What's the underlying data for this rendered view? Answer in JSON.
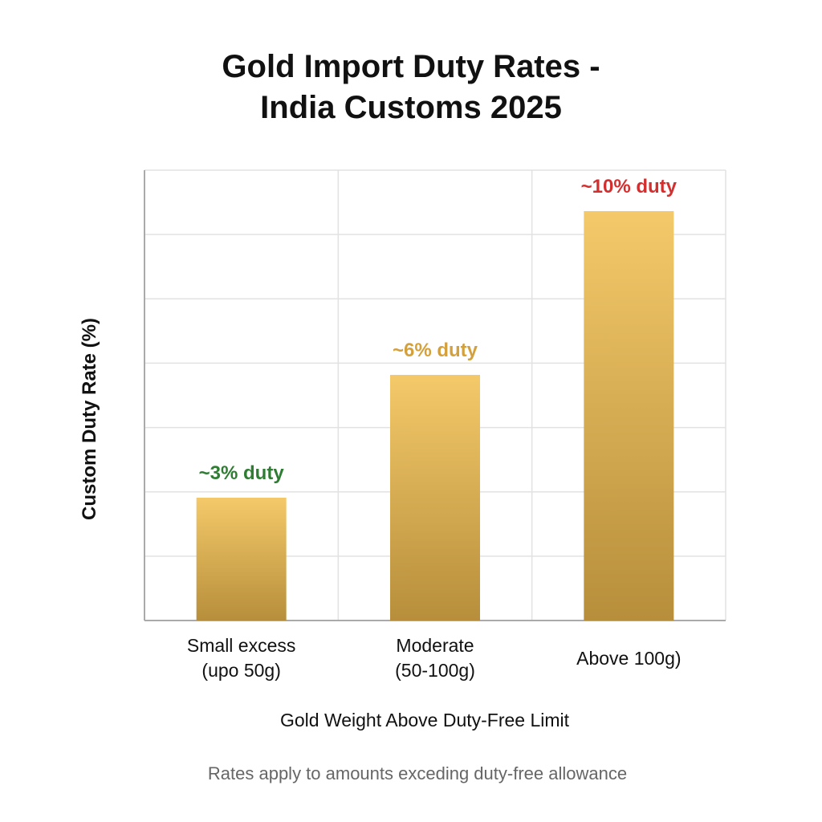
{
  "chart_data": {
    "type": "bar",
    "title": "Gold Import Duty Rates -\nIndia Customs 2025",
    "categories": [
      "Small excess\n(upo 50g)",
      "Moderate\n(50-100g)",
      "Above 100g)"
    ],
    "values": [
      3,
      6,
      10
    ],
    "value_labels": [
      "~3% duty",
      "~6% duty",
      "~10% duty"
    ],
    "value_label_colors": [
      "#2e7d32",
      "#d4a03c",
      "#d32f2f"
    ],
    "gradient": [
      "#f4c96a",
      "#b78e3b"
    ],
    "ylim": [
      0,
      11
    ],
    "grid": true,
    "xlabel": "Gold Weight Above Duty-Free Limit",
    "ylabel": "Custom Duty Rate (%)",
    "note": "Rates apply to amounts exceding duty-free allowance"
  }
}
